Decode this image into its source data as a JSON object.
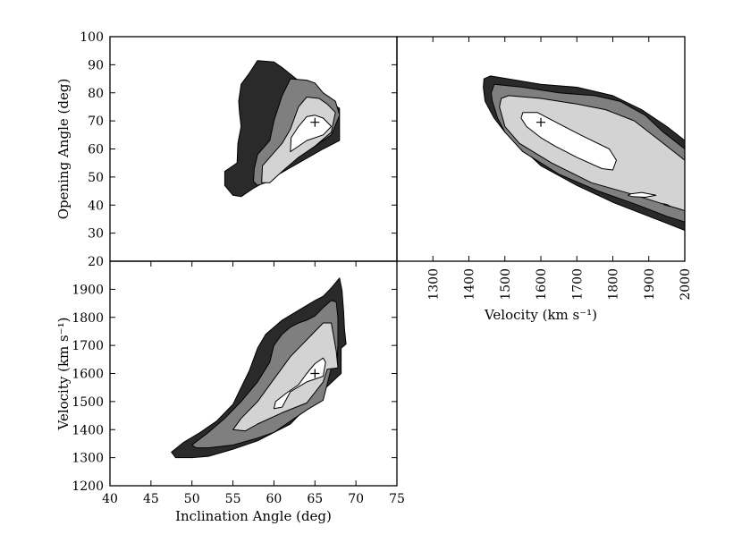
{
  "chart_data": [
    {
      "panel": "top-left",
      "type": "contour",
      "xlabel": "",
      "ylabel": "Opening Angle (deg)",
      "xlim": [
        40,
        75
      ],
      "ylim": [
        20,
        100
      ],
      "yticks": [
        20,
        30,
        40,
        50,
        60,
        70,
        80,
        90,
        100
      ],
      "colors": [
        "#2a2a2a",
        "#7f7f7f",
        "#d3d3d3",
        "#ffffff"
      ],
      "levels": [
        [
          [
            55.5,
            55
          ],
          [
            55.6,
            62
          ],
          [
            56,
            68
          ],
          [
            55.8,
            73
          ],
          [
            55.7,
            77
          ],
          [
            56,
            83
          ],
          [
            57,
            87
          ],
          [
            58,
            91.5
          ],
          [
            60,
            91
          ],
          [
            61,
            89
          ],
          [
            64,
            82
          ],
          [
            66,
            78
          ],
          [
            68,
            74.5
          ],
          [
            68,
            70
          ],
          [
            68,
            63
          ],
          [
            66,
            60
          ],
          [
            63,
            55
          ],
          [
            60,
            50
          ],
          [
            57.5,
            46
          ],
          [
            56,
            43
          ],
          [
            55,
            43.5
          ],
          [
            54,
            47
          ],
          [
            54,
            52
          ]
        ],
        [
          [
            57.5,
            48.5
          ],
          [
            57.6,
            53
          ],
          [
            58,
            58
          ],
          [
            59.5,
            63
          ],
          [
            60,
            70
          ],
          [
            61,
            79
          ],
          [
            62,
            85
          ],
          [
            64,
            84.5
          ],
          [
            65,
            83.5
          ],
          [
            66,
            80
          ],
          [
            67.5,
            77
          ],
          [
            68,
            72
          ],
          [
            67,
            65
          ],
          [
            64,
            59
          ],
          [
            61,
            53
          ],
          [
            59,
            48
          ],
          [
            58,
            47
          ]
        ],
        [
          [
            58.5,
            48
          ],
          [
            58.6,
            54
          ],
          [
            59.5,
            57
          ],
          [
            61,
            62
          ],
          [
            62,
            67
          ],
          [
            63,
            75
          ],
          [
            64,
            78.5
          ],
          [
            65.5,
            78
          ],
          [
            66.5,
            76
          ],
          [
            67.5,
            73
          ],
          [
            67,
            66
          ],
          [
            65,
            61
          ],
          [
            63,
            57
          ],
          [
            61,
            52
          ],
          [
            59.5,
            48
          ]
        ],
        [
          [
            62,
            59
          ],
          [
            62.1,
            64
          ],
          [
            63,
            68
          ],
          [
            64,
            71.5
          ],
          [
            65,
            72
          ],
          [
            66,
            71
          ],
          [
            67,
            68
          ],
          [
            66,
            65
          ],
          [
            64,
            63
          ],
          [
            62.5,
            60
          ]
        ]
      ],
      "best_fit": [
        65,
        69.5
      ]
    },
    {
      "panel": "top-right",
      "type": "contour",
      "xlabel": "Velocity (km s⁻¹)",
      "ylabel": "",
      "xlim": [
        1200,
        2000
      ],
      "ylim": [
        20,
        100
      ],
      "xticks": [
        1300,
        1400,
        1500,
        1600,
        1700,
        1800,
        1900,
        2000
      ],
      "colors": [
        "#2a2a2a",
        "#7f7f7f",
        "#d3d3d3",
        "#ffffff"
      ],
      "levels": [
        [
          [
            1445,
            77
          ],
          [
            1440,
            82
          ],
          [
            1442,
            85
          ],
          [
            1460,
            86
          ],
          [
            1600,
            83
          ],
          [
            1700,
            82
          ],
          [
            1800,
            79
          ],
          [
            1880,
            74
          ],
          [
            1950,
            68
          ],
          [
            2000,
            63
          ],
          [
            2000,
            31
          ],
          [
            1960,
            33
          ],
          [
            1900,
            36
          ],
          [
            1800,
            41
          ],
          [
            1700,
            47
          ],
          [
            1600,
            54
          ],
          [
            1550,
            60
          ],
          [
            1500,
            66
          ],
          [
            1470,
            71
          ]
        ],
        [
          [
            1465,
            77
          ],
          [
            1462,
            80
          ],
          [
            1470,
            83
          ],
          [
            1550,
            82
          ],
          [
            1650,
            80
          ],
          [
            1750,
            79
          ],
          [
            1820,
            77
          ],
          [
            1890,
            72
          ],
          [
            1940,
            66
          ],
          [
            2000,
            60
          ],
          [
            2000,
            34
          ],
          [
            1950,
            36
          ],
          [
            1870,
            40
          ],
          [
            1760,
            45
          ],
          [
            1650,
            51
          ],
          [
            1550,
            59
          ],
          [
            1500,
            66
          ],
          [
            1480,
            71
          ]
        ],
        [
          [
            1485,
            75
          ],
          [
            1490,
            78
          ],
          [
            1510,
            79
          ],
          [
            1600,
            78
          ],
          [
            1700,
            76
          ],
          [
            1780,
            74
          ],
          [
            1860,
            70
          ],
          [
            1920,
            64
          ],
          [
            2000,
            56
          ],
          [
            2000,
            38
          ],
          [
            1950,
            40
          ],
          [
            1850,
            44
          ],
          [
            1740,
            48
          ],
          [
            1630,
            55
          ],
          [
            1540,
            62
          ],
          [
            1500,
            68
          ]
        ],
        [
          [
            1545,
            71
          ],
          [
            1550,
            73
          ],
          [
            1590,
            73
          ],
          [
            1650,
            69
          ],
          [
            1710,
            65
          ],
          [
            1790,
            60
          ],
          [
            1810,
            56
          ],
          [
            1800,
            52.5
          ],
          [
            1770,
            53
          ],
          [
            1700,
            57
          ],
          [
            1640,
            61
          ],
          [
            1600,
            64
          ],
          [
            1560,
            68
          ]
        ],
        [
          [
            1842,
            43.5
          ],
          [
            1850,
            44
          ],
          [
            1880,
            44.5
          ],
          [
            1920,
            43.5
          ],
          [
            1890,
            42.8
          ],
          [
            1855,
            43
          ]
        ],
        [
          [
            1940,
            40.5
          ],
          [
            1945,
            40
          ],
          [
            1960,
            39.5
          ],
          [
            1950,
            40.2
          ]
        ]
      ],
      "best_fit": [
        1600,
        69.5
      ]
    },
    {
      "panel": "bottom-left",
      "type": "contour",
      "xlabel": "Inclination Angle (deg)",
      "ylabel": "Velocity (km s⁻¹)",
      "xlim": [
        40,
        75
      ],
      "ylim": [
        1200,
        2000
      ],
      "xticks": [
        40,
        45,
        50,
        55,
        60,
        65,
        70,
        75
      ],
      "yticks": [
        1200,
        1300,
        1400,
        1500,
        1600,
        1700,
        1800,
        1900
      ],
      "colors": [
        "#2a2a2a",
        "#7f7f7f",
        "#d3d3d3",
        "#ffffff"
      ],
      "levels": [
        [
          [
            47.5,
            1320
          ],
          [
            49,
            1355
          ],
          [
            51,
            1390
          ],
          [
            53,
            1430
          ],
          [
            55,
            1490
          ],
          [
            56,
            1550
          ],
          [
            57,
            1610
          ],
          [
            58,
            1690
          ],
          [
            59,
            1740
          ],
          [
            61,
            1790
          ],
          [
            63,
            1825
          ],
          [
            65,
            1860
          ],
          [
            66,
            1875
          ],
          [
            67,
            1905
          ],
          [
            68,
            1940
          ],
          [
            68.3,
            1895
          ],
          [
            68.5,
            1820
          ],
          [
            68.6,
            1760
          ],
          [
            68.8,
            1705
          ],
          [
            68.2,
            1690
          ],
          [
            68.2,
            1600
          ],
          [
            66,
            1540
          ],
          [
            64,
            1480
          ],
          [
            62,
            1420
          ],
          [
            60,
            1390
          ],
          [
            58,
            1360
          ],
          [
            55,
            1330
          ],
          [
            52,
            1305
          ],
          [
            50,
            1300
          ],
          [
            48,
            1300
          ]
        ],
        [
          [
            50,
            1345
          ],
          [
            52,
            1390
          ],
          [
            54,
            1440
          ],
          [
            56,
            1500
          ],
          [
            58,
            1570
          ],
          [
            59.5,
            1640
          ],
          [
            60,
            1700
          ],
          [
            61,
            1740
          ],
          [
            62,
            1765
          ],
          [
            63,
            1780
          ],
          [
            64,
            1790
          ],
          [
            65,
            1805
          ],
          [
            66,
            1835
          ],
          [
            67,
            1860
          ],
          [
            67.6,
            1855
          ],
          [
            67.8,
            1800
          ],
          [
            67.8,
            1700
          ],
          [
            67.7,
            1640
          ],
          [
            67,
            1620
          ],
          [
            66,
            1505
          ],
          [
            64,
            1470
          ],
          [
            62,
            1430
          ],
          [
            60,
            1390
          ],
          [
            58,
            1370
          ],
          [
            55,
            1345
          ],
          [
            52,
            1335
          ],
          [
            50.5,
            1335
          ]
        ],
        [
          [
            55,
            1400
          ],
          [
            56,
            1440
          ],
          [
            58,
            1500
          ],
          [
            60,
            1580
          ],
          [
            62,
            1660
          ],
          [
            64,
            1720
          ],
          [
            66,
            1780
          ],
          [
            67,
            1780
          ],
          [
            67.6,
            1680
          ],
          [
            67.8,
            1620
          ],
          [
            66.5,
            1615
          ],
          [
            66,
            1570
          ],
          [
            64,
            1495
          ],
          [
            61,
            1460
          ],
          [
            58,
            1420
          ],
          [
            56.5,
            1395
          ]
        ],
        [
          [
            60,
            1475
          ],
          [
            60.2,
            1500
          ],
          [
            61.5,
            1530
          ],
          [
            63,
            1560
          ],
          [
            64,
            1600
          ],
          [
            65,
            1635
          ],
          [
            66,
            1655
          ],
          [
            66.3,
            1640
          ],
          [
            66,
            1590
          ],
          [
            64,
            1570
          ],
          [
            62,
            1535
          ],
          [
            61,
            1480
          ]
        ]
      ],
      "best_fit": [
        65,
        1600
      ]
    }
  ]
}
